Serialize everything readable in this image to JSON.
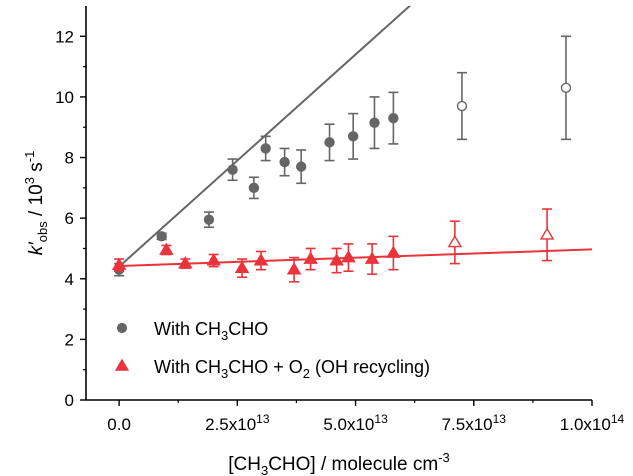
{
  "chart_data": {
    "type": "scatter",
    "x_axis": {
      "label_parts": [
        "[CH",
        "3",
        "CHO] / molecule cm",
        "-3"
      ],
      "range": [
        -7000000000000.0,
        100000000000000.0
      ],
      "ticks": [
        0,
        25000000000000.0,
        50000000000000.0,
        75000000000000.0,
        100000000000000.0
      ],
      "tick_labels": [
        {
          "mantissa": "0.0",
          "exp": ""
        },
        {
          "mantissa": "2.5x10",
          "exp": "13"
        },
        {
          "mantissa": "5.0x10",
          "exp": "13"
        },
        {
          "mantissa": "7.5x10",
          "exp": "13"
        },
        {
          "mantissa": "1.0x10",
          "exp": "14"
        }
      ]
    },
    "y_axis": {
      "label_parts": [
        "k′",
        "obs",
        " / 10",
        "3",
        " s",
        "-1"
      ],
      "range": [
        0,
        13
      ],
      "ticks": [
        0,
        2,
        4,
        6,
        8,
        10,
        12
      ],
      "tick_labels": [
        "0",
        "2",
        "4",
        "6",
        "8",
        "10",
        "12"
      ]
    },
    "grid": false,
    "legend_position": "bottom-left",
    "series": [
      {
        "name_parts": [
          "With CH",
          "3",
          "CHO"
        ],
        "marker": "circle",
        "color": "#666666",
        "fit": {
          "intercept": 4.4,
          "slope": 1.4e-13,
          "x_range": [
            0,
            93000000000000.0
          ]
        },
        "points": [
          {
            "x": 0.0,
            "y": 4.3,
            "err": 0.2,
            "filled": true
          },
          {
            "x": 9000000000000.0,
            "y": 5.4,
            "err": 0.1,
            "filled": true
          },
          {
            "x": 19000000000000.0,
            "y": 5.95,
            "err": 0.25,
            "filled": true
          },
          {
            "x": 24000000000000.0,
            "y": 7.6,
            "err": 0.35,
            "filled": true
          },
          {
            "x": 28500000000000.0,
            "y": 7.0,
            "err": 0.35,
            "filled": true
          },
          {
            "x": 31000000000000.0,
            "y": 8.3,
            "err": 0.4,
            "filled": true
          },
          {
            "x": 35000000000000.0,
            "y": 7.85,
            "err": 0.45,
            "filled": true
          },
          {
            "x": 38500000000000.0,
            "y": 7.7,
            "err": 0.55,
            "filled": true
          },
          {
            "x": 44500000000000.0,
            "y": 8.5,
            "err": 0.6,
            "filled": true
          },
          {
            "x": 49500000000000.0,
            "y": 8.7,
            "err": 0.75,
            "filled": true
          },
          {
            "x": 54000000000000.0,
            "y": 9.15,
            "err": 0.85,
            "filled": true
          },
          {
            "x": 58000000000000.0,
            "y": 9.3,
            "err": 0.85,
            "filled": true
          },
          {
            "x": 72500000000000.0,
            "y": 9.7,
            "err": 1.1,
            "filled": false
          },
          {
            "x": 94500000000000.0,
            "y": 10.3,
            "err": 1.7,
            "filled": false
          }
        ]
      },
      {
        "name_parts": [
          "With CH",
          "3",
          "CHO + O",
          "2",
          " (OH recycling)"
        ],
        "marker": "triangle",
        "color": "#e8343a",
        "fit": {
          "intercept": 4.42,
          "slope": 5.5e-15,
          "x_range": [
            0,
            100000000000000.0
          ]
        },
        "points": [
          {
            "x": 0.0,
            "y": 4.45,
            "err": 0.2,
            "filled": true
          },
          {
            "x": 10000000000000.0,
            "y": 4.95,
            "err": 0.15,
            "filled": true
          },
          {
            "x": 14000000000000.0,
            "y": 4.5,
            "err": 0.15,
            "filled": true
          },
          {
            "x": 20000000000000.0,
            "y": 4.6,
            "err": 0.2,
            "filled": true
          },
          {
            "x": 26000000000000.0,
            "y": 4.35,
            "err": 0.3,
            "filled": true
          },
          {
            "x": 30000000000000.0,
            "y": 4.6,
            "err": 0.3,
            "filled": true
          },
          {
            "x": 37000000000000.0,
            "y": 4.3,
            "err": 0.4,
            "filled": true
          },
          {
            "x": 40500000000000.0,
            "y": 4.65,
            "err": 0.35,
            "filled": true
          },
          {
            "x": 46000000000000.0,
            "y": 4.6,
            "err": 0.4,
            "filled": true
          },
          {
            "x": 48500000000000.0,
            "y": 4.7,
            "err": 0.45,
            "filled": true
          },
          {
            "x": 53500000000000.0,
            "y": 4.65,
            "err": 0.5,
            "filled": true
          },
          {
            "x": 58000000000000.0,
            "y": 4.85,
            "err": 0.55,
            "filled": true
          },
          {
            "x": 71000000000000.0,
            "y": 5.2,
            "err": 0.7,
            "filled": false
          },
          {
            "x": 90500000000000.0,
            "y": 5.45,
            "err": 0.85,
            "filled": false
          }
        ]
      }
    ]
  }
}
